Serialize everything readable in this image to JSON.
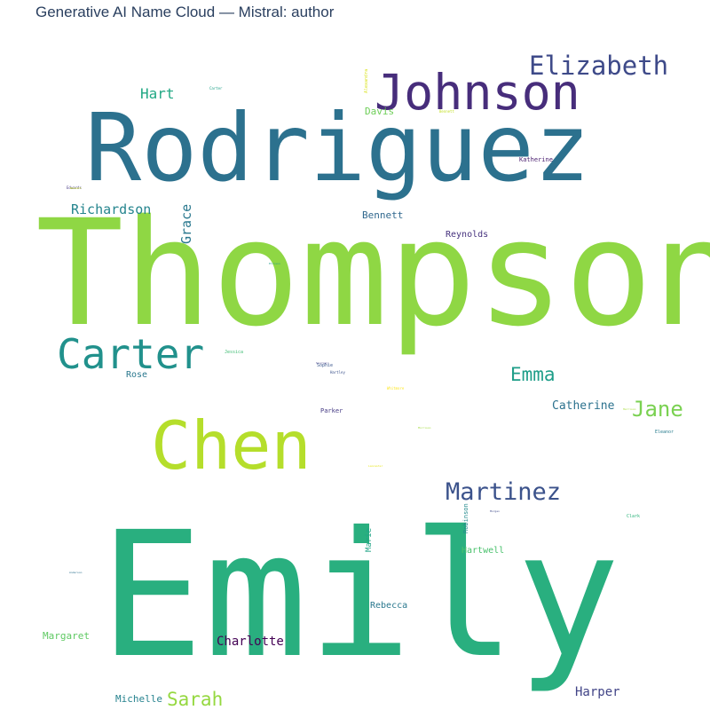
{
  "title": "Generative AI Name Cloud — Mistral: author",
  "chart_data": {
    "type": "wordcloud",
    "title": "Generative AI Name Cloud — Mistral: author",
    "words": [
      {
        "text": "Thompson",
        "weight": 100,
        "color": "#8fd744",
        "orientation": "horizontal"
      },
      {
        "text": "Emily",
        "weight": 92,
        "color": "#29af7f",
        "orientation": "horizontal"
      },
      {
        "text": "Rodriguez",
        "weight": 72,
        "color": "#2c718e",
        "orientation": "horizontal"
      },
      {
        "text": "Chen",
        "weight": 40,
        "color": "#b5de2b",
        "orientation": "horizontal"
      },
      {
        "text": "Johnson",
        "weight": 32,
        "color": "#472d7b",
        "orientation": "horizontal"
      },
      {
        "text": "Carter",
        "weight": 28,
        "color": "#21918c",
        "orientation": "horizontal"
      },
      {
        "text": "Elizabeth",
        "weight": 18,
        "color": "#3e4a89",
        "orientation": "horizontal"
      },
      {
        "text": "Martinez",
        "weight": 17,
        "color": "#3b528b",
        "orientation": "horizontal"
      },
      {
        "text": "Jane",
        "weight": 14,
        "color": "#7ad151",
        "orientation": "horizontal"
      },
      {
        "text": "Emma",
        "weight": 13,
        "color": "#1f9e89",
        "orientation": "horizontal"
      },
      {
        "text": "Sarah",
        "weight": 12,
        "color": "#95d840",
        "orientation": "horizontal"
      },
      {
        "text": "Hart",
        "weight": 10,
        "color": "#22a884",
        "orientation": "horizontal"
      },
      {
        "text": "Richardson",
        "weight": 10,
        "color": "#25858e",
        "orientation": "horizontal"
      },
      {
        "text": "Grace",
        "weight": 10,
        "color": "#2a788e",
        "orientation": "vertical"
      },
      {
        "text": "Charlotte",
        "weight": 10,
        "color": "#440154",
        "orientation": "horizontal"
      },
      {
        "text": "Harper",
        "weight": 9,
        "color": "#414487",
        "orientation": "horizontal"
      },
      {
        "text": "Catherine",
        "weight": 9,
        "color": "#2c728e",
        "orientation": "horizontal"
      },
      {
        "text": "Davis",
        "weight": 7,
        "color": "#6ece58",
        "orientation": "horizontal"
      },
      {
        "text": "Bennett",
        "weight": 7,
        "color": "#31688e",
        "orientation": "horizontal"
      },
      {
        "text": "Margaret",
        "weight": 7,
        "color": "#5ec962",
        "orientation": "horizontal"
      },
      {
        "text": "Michelle",
        "weight": 7,
        "color": "#26828e",
        "orientation": "horizontal"
      },
      {
        "text": "Reynolds",
        "weight": 7,
        "color": "#46327e",
        "orientation": "horizontal"
      },
      {
        "text": "Rebecca",
        "weight": 6,
        "color": "#2a788e",
        "orientation": "horizontal"
      },
      {
        "text": "Hartwell",
        "weight": 6,
        "color": "#4ac16d",
        "orientation": "horizontal"
      },
      {
        "text": "Rose",
        "weight": 6,
        "color": "#2a788e",
        "orientation": "horizontal"
      },
      {
        "text": "Marie",
        "weight": 5,
        "color": "#20a486",
        "orientation": "vertical"
      },
      {
        "text": "Parker",
        "weight": 4,
        "color": "#443983",
        "orientation": "horizontal"
      },
      {
        "text": "Katherine",
        "weight": 4,
        "color": "#481c6e",
        "orientation": "horizontal"
      },
      {
        "text": "Robinson",
        "weight": 4,
        "color": "#238a8d",
        "orientation": "vertical"
      },
      {
        "text": "Clark",
        "weight": 4,
        "color": "#2fb47c",
        "orientation": "horizontal"
      },
      {
        "text": "Eleanor",
        "weight": 3,
        "color": "#287c8e",
        "orientation": "horizontal"
      },
      {
        "text": "Jessica",
        "weight": 3,
        "color": "#3fbc73",
        "orientation": "horizontal"
      },
      {
        "text": "Sophie",
        "weight": 3,
        "color": "#39568c",
        "orientation": "horizontal"
      },
      {
        "text": "Alexandra",
        "weight": 3,
        "color": "#d8e219",
        "orientation": "vertical"
      },
      {
        "text": "Whitmore",
        "weight": 2,
        "color": "#fde725",
        "orientation": "horizontal"
      },
      {
        "text": "Hartley",
        "weight": 2,
        "color": "#3b528b",
        "orientation": "horizontal"
      },
      {
        "text": "Edwards",
        "weight": 2,
        "color": "#453882",
        "orientation": "horizontal"
      },
      {
        "text": "Carter",
        "weight": 2,
        "color": "#1fa088",
        "orientation": "horizontal"
      },
      {
        "text": "Bennett",
        "weight": 2,
        "color": "#c2df23",
        "orientation": "horizontal"
      },
      {
        "text": "Ellison",
        "weight": 2,
        "color": "#1e9b8a",
        "orientation": "horizontal"
      },
      {
        "text": "Morrison",
        "weight": 2,
        "color": "#a0da39",
        "orientation": "horizontal"
      },
      {
        "text": "Lancaster",
        "weight": 2,
        "color": "#e5e419",
        "orientation": "horizontal"
      },
      {
        "text": "Morgan",
        "weight": 2,
        "color": "#3e4989",
        "orientation": "horizontal"
      },
      {
        "text": "Anderson",
        "weight": 2,
        "color": "#2d708e",
        "orientation": "horizontal"
      },
      {
        "text": "Sinclair",
        "weight": 2,
        "color": "#433e85",
        "orientation": "horizontal"
      },
      {
        "text": "Harrison",
        "weight": 2,
        "color": "#a5db36",
        "orientation": "horizontal"
      },
      {
        "text": "Bennett",
        "weight": 2,
        "color": "#cae11f",
        "orientation": "horizontal"
      }
    ]
  }
}
